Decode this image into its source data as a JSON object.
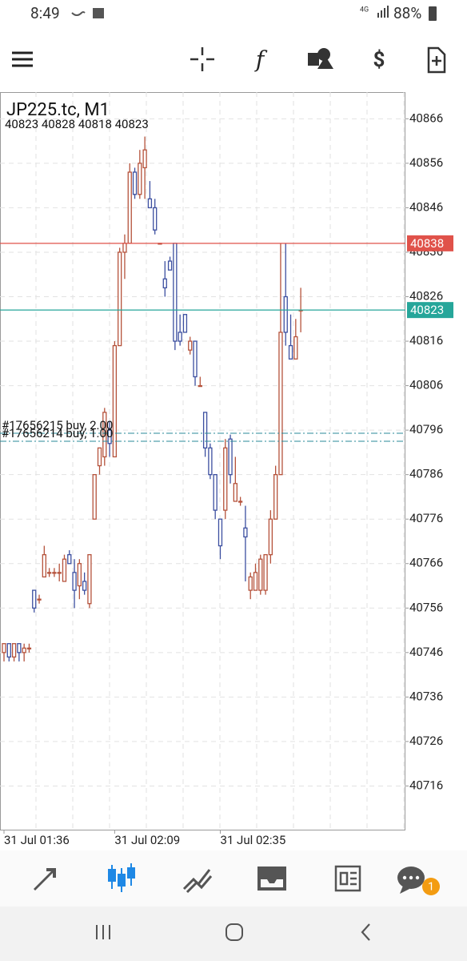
{
  "status_bar": {
    "time": "8:49",
    "network": "4G",
    "battery": "88%"
  },
  "chart_data": {
    "type": "candlestick",
    "title": "JP225.tc, M1",
    "ohlc_text": "40823 40828 40818 40823",
    "up_color": "#b5523b",
    "down_color": "#3c4fa0",
    "grid": true,
    "ylim": [
      40706,
      40872
    ],
    "yticks": [
      40716,
      40726,
      40736,
      40746,
      40756,
      40766,
      40776,
      40786,
      40796,
      40806,
      40816,
      40826,
      40836,
      40846,
      40856,
      40866
    ],
    "categories": [
      "31 Jul 01:36",
      null,
      null,
      null,
      null,
      null,
      null,
      null,
      null,
      null,
      null,
      null,
      null,
      null,
      null,
      null,
      null,
      null,
      null,
      null,
      null,
      null,
      "31 Jul 02:09",
      null,
      null,
      null,
      null,
      null,
      null,
      null,
      null,
      null,
      null,
      null,
      null,
      null,
      null,
      null,
      null,
      null,
      null,
      null,
      null,
      "31 Jul 02:35",
      null,
      null,
      null,
      null,
      null,
      null,
      null,
      null,
      null,
      null,
      null,
      null,
      null,
      null,
      null,
      null
    ],
    "open": [
      40746,
      40748,
      40745,
      40748,
      40746,
      40747,
      40760,
      40758,
      40763,
      40764,
      40764,
      40764,
      40762,
      40768,
      40764,
      40761,
      40762,
      40757,
      40776,
      40788,
      40790,
      40796,
      40790,
      40815,
      40836,
      40838,
      40854,
      40849,
      40855,
      40848,
      40846,
      40838,
      40830,
      40834,
      40838,
      40818,
      40822,
      40814,
      40816,
      40806,
      40800,
      40792,
      40786,
      40776,
      40778,
      40794,
      40780,
      40780,
      40774,
      40760,
      40760,
      40760,
      40760,
      40768,
      40776,
      40786,
      40826,
      40815,
      40812,
      40823
    ],
    "high": [
      40748,
      40748,
      40748,
      40748,
      40748,
      40748,
      40760,
      40759,
      40770,
      40765,
      40765,
      40766,
      40768,
      40769,
      40767,
      40767,
      40764,
      40768,
      40786,
      40792,
      40801,
      40798,
      40816,
      40837,
      40840,
      40856,
      40855,
      40859,
      40862,
      40852,
      40848,
      40838,
      40834,
      40835,
      40838,
      40822,
      40822,
      40817,
      40816,
      40808,
      40800,
      40793,
      40786,
      40776,
      40794,
      40795,
      40790,
      40781,
      40779,
      40764,
      40766,
      40768,
      40768,
      40778,
      40788,
      40838,
      40838,
      40822,
      40821,
      40828
    ],
    "low": [
      40744,
      40744,
      40744,
      40744,
      40744,
      40746,
      40755,
      40757,
      40763,
      40763,
      40763,
      40762,
      40762,
      40766,
      40756,
      40758,
      40759,
      40756,
      40776,
      40786,
      40788,
      40790,
      40790,
      40815,
      40830,
      40838,
      40848,
      40848,
      40848,
      40846,
      40840,
      40838,
      40826,
      40832,
      40814,
      40815,
      40818,
      40813,
      40806,
      40806,
      40790,
      40785,
      40776,
      40767,
      40776,
      40784,
      40780,
      40779,
      40762,
      40758,
      40760,
      40759,
      40759,
      40766,
      40776,
      40786,
      40815,
      40812,
      40812,
      40818
    ],
    "close": [
      40748,
      40745,
      40748,
      40746,
      40747,
      40747,
      40756,
      40758,
      40768,
      40764,
      40764,
      40764,
      40767,
      40766,
      40760,
      40766,
      40760,
      40768,
      40786,
      40792,
      40800,
      40793,
      40815,
      40836,
      40838,
      40854,
      40849,
      40856,
      40859,
      40846,
      40841,
      40838,
      40828,
      40832,
      40816,
      40816,
      40818,
      40816,
      40808,
      40806,
      40792,
      40786,
      40778,
      40770,
      40792,
      40786,
      40784,
      40780,
      40772,
      40763,
      40764,
      40767,
      40768,
      40776,
      40786,
      40818,
      40818,
      40812,
      40817,
      40823
    ],
    "levels": [
      {
        "value": 40838,
        "color": "#e0524a"
      },
      {
        "value": 40823,
        "color": "#26a69a"
      }
    ],
    "orders": [
      {
        "label": "#17656215 buy, 2.00",
        "value": 40795.3
      },
      {
        "label": "#17656214 buy, 1.00",
        "value": 40793.5
      }
    ]
  },
  "bottom_nav": {
    "badge": "1"
  }
}
